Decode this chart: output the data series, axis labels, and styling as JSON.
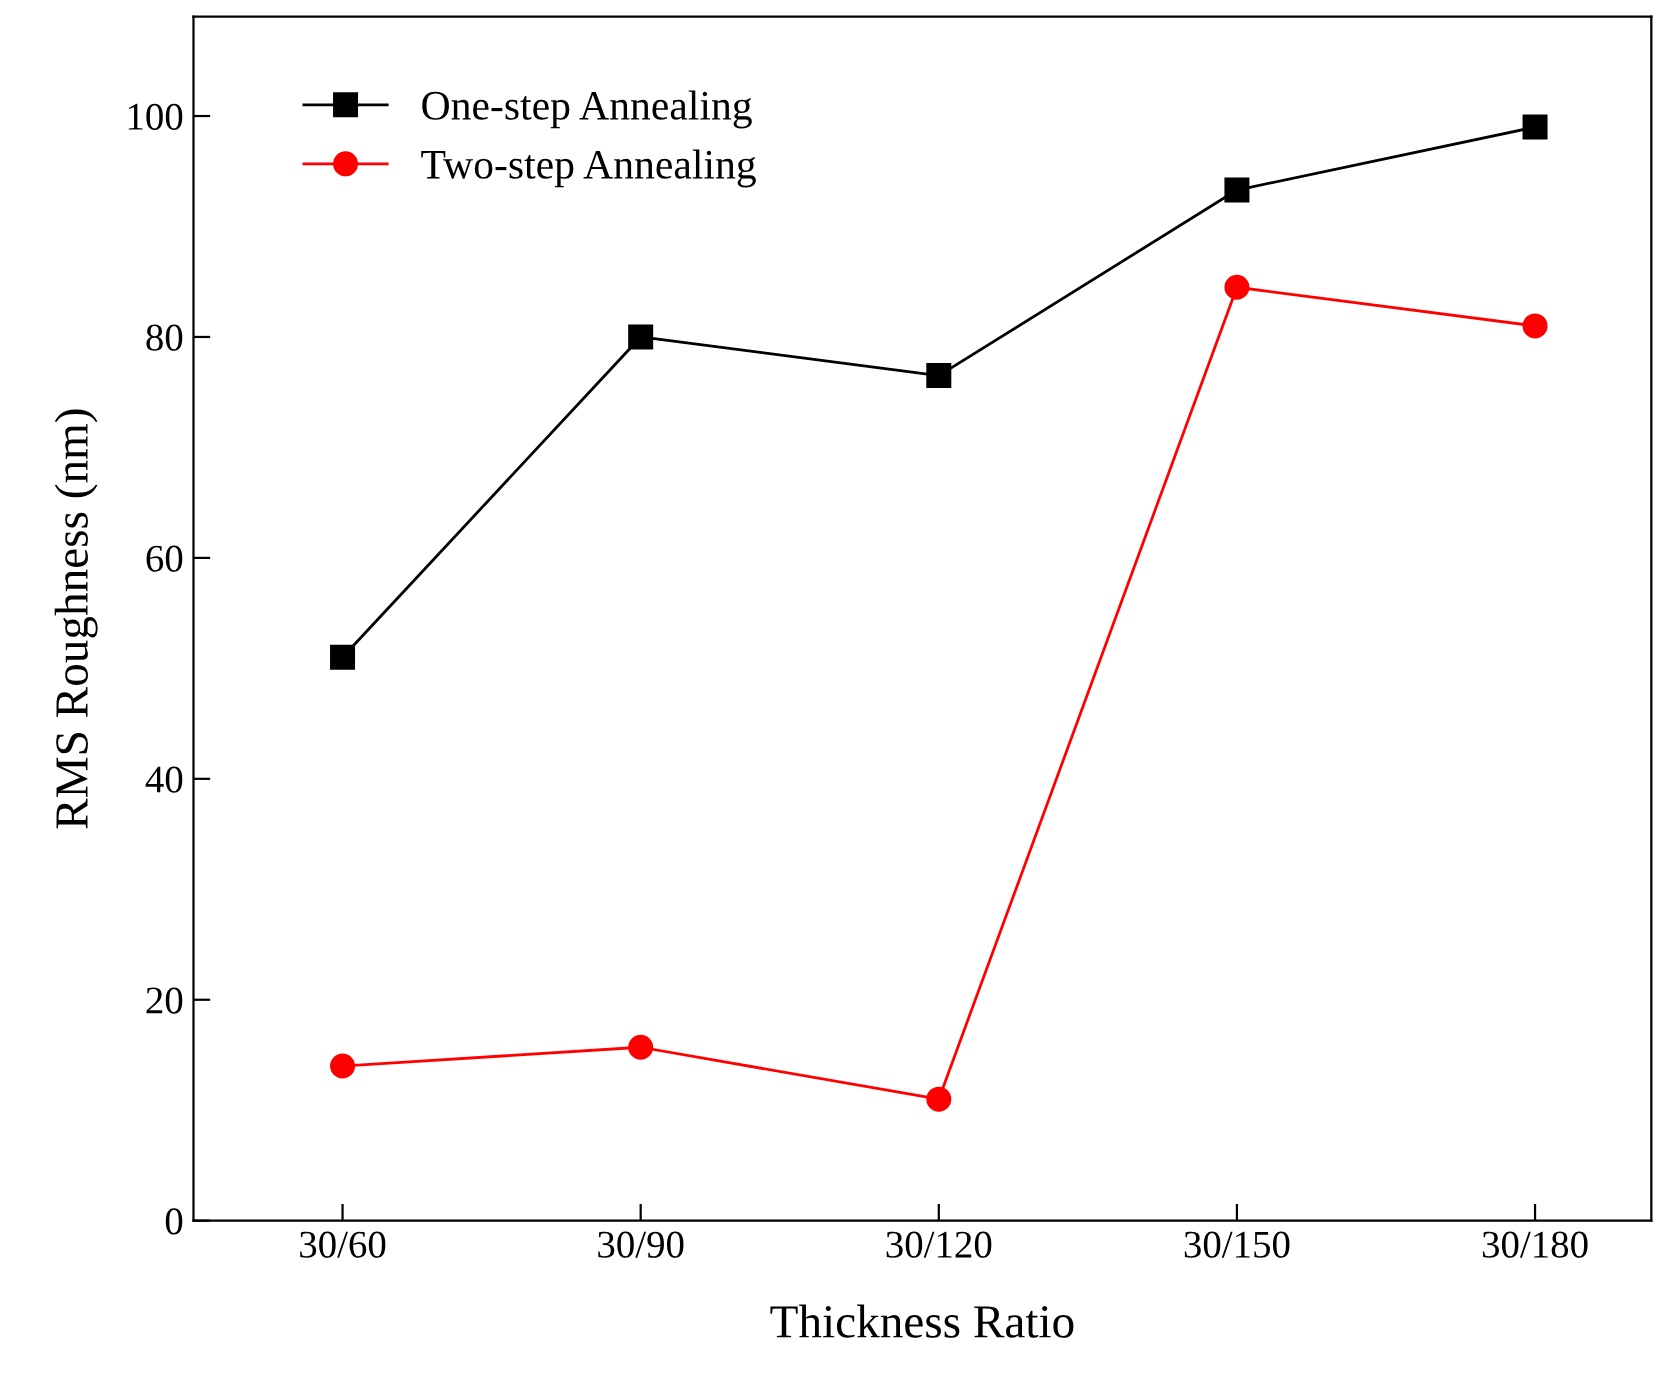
{
  "chart_data": {
    "type": "line",
    "xlabel": "Thickness Ratio",
    "ylabel": "RMS Roughness (nm)",
    "categories": [
      "30/60",
      "30/90",
      "30/120",
      "30/150",
      "30/180"
    ],
    "series": [
      {
        "name": "One-step Annealing",
        "color": "#000000",
        "marker": "square",
        "values": [
          51,
          80,
          76.5,
          93.3,
          99
        ]
      },
      {
        "name": "Two-step Annealing",
        "color": "#ff0000",
        "marker": "circle",
        "values": [
          14,
          15.7,
          11,
          84.5,
          81
        ]
      }
    ],
    "ylim": [
      0,
      109
    ],
    "yticks": [
      0,
      20,
      40,
      60,
      80,
      100
    ],
    "legend": "top left",
    "grid": false
  }
}
